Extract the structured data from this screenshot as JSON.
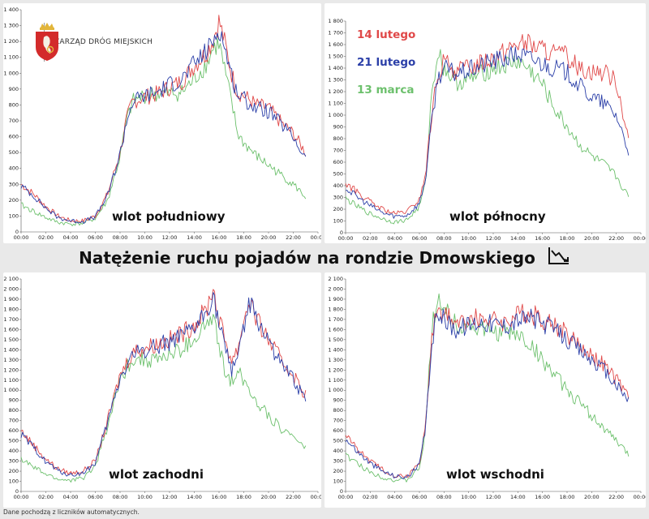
{
  "main_title": "Natężenie ruchu pojadów na rondzie Dmowskiego",
  "trend_icon": "downtrend-chart-icon",
  "source_note": "Dane pochodzą z liczników automatycznych.",
  "logo": {
    "text": "ZARZĄD DRÓG MIEJSKICH",
    "icon": "warsaw-coat-of-arms-icon",
    "shield_color": "#d32b2b",
    "crown_color": "#e2b53a"
  },
  "legend": [
    {
      "label": "14 lutego",
      "color": "#e04848"
    },
    {
      "label": "21 lutego",
      "color": "#2b3fa8"
    },
    {
      "label": "13 marca",
      "color": "#6cc06c"
    }
  ],
  "chart_data": [
    {
      "type": "line",
      "title": "wlot południowy",
      "x_ticks": [
        "00:00",
        "02:00",
        "04:00",
        "06:00",
        "08:00",
        "10:00",
        "12:00",
        "14:00",
        "16:00",
        "18:00",
        "20:00",
        "22:00",
        "00:00"
      ],
      "y_ticks": [
        "0",
        "100",
        "200",
        "300",
        "400",
        "500",
        "600",
        "700",
        "800",
        "900",
        "1 000",
        "1 100",
        "1 200",
        "1 300",
        "1 400"
      ],
      "ylim": [
        0,
        1400
      ],
      "series": [
        {
          "name": "14 lutego",
          "color": "#e04848",
          "x": [
            0,
            1,
            2,
            3,
            4,
            5,
            6,
            7,
            8,
            8.5,
            9,
            10,
            11,
            12,
            13,
            14,
            15,
            15.5,
            16,
            16.5,
            17,
            17.5,
            18,
            19,
            20,
            21,
            22,
            23
          ],
          "y": [
            300,
            240,
            160,
            100,
            70,
            70,
            100,
            240,
            500,
            700,
            820,
            850,
            870,
            910,
            950,
            1050,
            1130,
            1210,
            1330,
            1180,
            1000,
            880,
            860,
            800,
            780,
            690,
            620,
            500
          ]
        },
        {
          "name": "21 lutego",
          "color": "#2b3fa8",
          "x": [
            0,
            1,
            2,
            3,
            4,
            5,
            6,
            7,
            8,
            8.5,
            9,
            10,
            11,
            12,
            13,
            14,
            15,
            15.5,
            16,
            16.5,
            17,
            17.5,
            18,
            19,
            20,
            21,
            22,
            23
          ],
          "y": [
            290,
            230,
            150,
            90,
            70,
            65,
            95,
            230,
            490,
            690,
            820,
            860,
            880,
            930,
            960,
            1060,
            1140,
            1200,
            1290,
            1150,
            990,
            870,
            840,
            780,
            760,
            680,
            600,
            460
          ]
        },
        {
          "name": "13 marca",
          "color": "#6cc06c",
          "x": [
            0,
            1,
            2,
            3,
            4,
            5,
            6,
            7,
            8,
            8.5,
            9,
            10,
            11,
            12,
            13,
            14,
            15,
            15.5,
            16,
            16.5,
            17,
            17.5,
            18,
            19,
            20,
            21,
            22,
            23
          ],
          "y": [
            170,
            130,
            90,
            60,
            50,
            55,
            85,
            200,
            470,
            690,
            820,
            860,
            870,
            870,
            880,
            960,
            1060,
            1150,
            1190,
            1000,
            820,
            620,
            560,
            480,
            420,
            360,
            300,
            220
          ]
        }
      ]
    },
    {
      "type": "line",
      "title": "wlot północny",
      "x_ticks": [
        "00:00",
        "02:00",
        "04:00",
        "06:00",
        "08:00",
        "10:00",
        "12:00",
        "14:00",
        "16:00",
        "18:00",
        "20:00",
        "22:00",
        "00:00"
      ],
      "y_ticks": [
        "0",
        "100",
        "200",
        "300",
        "400",
        "500",
        "600",
        "700",
        "800",
        "900",
        "1 000",
        "1 100",
        "1 200",
        "1 300",
        "1 400",
        "1 500",
        "1 600",
        "1 700",
        "1 800"
      ],
      "ylim": [
        0,
        1800
      ],
      "series": [
        {
          "name": "14 lutego",
          "color": "#e04848",
          "x": [
            0,
            1,
            2,
            3,
            4,
            5,
            6,
            6.5,
            7,
            7.5,
            8,
            9,
            10,
            11,
            12,
            13,
            14,
            15,
            16,
            17,
            18,
            19,
            20,
            21,
            22,
            23
          ],
          "y": [
            420,
            340,
            260,
            200,
            160,
            180,
            280,
            500,
            1000,
            1350,
            1450,
            1380,
            1400,
            1450,
            1500,
            1550,
            1620,
            1600,
            1560,
            1520,
            1500,
            1400,
            1380,
            1360,
            1300,
            800
          ]
        },
        {
          "name": "21 lutego",
          "color": "#2b3fa8",
          "x": [
            0,
            1,
            2,
            3,
            4,
            5,
            6,
            6.5,
            7,
            7.5,
            8,
            9,
            10,
            11,
            12,
            13,
            14,
            15,
            16,
            17,
            18,
            19,
            20,
            21,
            22,
            23
          ],
          "y": [
            380,
            300,
            230,
            170,
            140,
            150,
            250,
            460,
            950,
            1320,
            1400,
            1350,
            1380,
            1420,
            1460,
            1480,
            1520,
            1480,
            1440,
            1400,
            1360,
            1250,
            1150,
            1100,
            1000,
            700
          ]
        },
        {
          "name": "13 marca",
          "color": "#6cc06c",
          "x": [
            0,
            1,
            2,
            3,
            4,
            5,
            6,
            6.5,
            7,
            7.5,
            8,
            9,
            10,
            11,
            12,
            13,
            14,
            15,
            16,
            17,
            18,
            19,
            20,
            21,
            22,
            23
          ],
          "y": [
            290,
            220,
            160,
            120,
            90,
            110,
            220,
            420,
            1200,
            1550,
            1400,
            1280,
            1300,
            1350,
            1400,
            1420,
            1460,
            1380,
            1260,
            1050,
            900,
            750,
            650,
            580,
            480,
            300
          ]
        }
      ]
    },
    {
      "type": "line",
      "title": "wlot zachodni",
      "x_ticks": [
        "00:00",
        "02:00",
        "04:00",
        "06:00",
        "08:00",
        "10:00",
        "12:00",
        "14:00",
        "16:00",
        "18:00",
        "20:00",
        "22:00",
        "00:00"
      ],
      "y_ticks": [
        "0",
        "100",
        "200",
        "300",
        "400",
        "500",
        "600",
        "700",
        "800",
        "900",
        "1 000",
        "1 100",
        "1 200",
        "1 300",
        "1 400",
        "1 500",
        "1 600",
        "1 700",
        "1 800",
        "1 900",
        "2 000",
        "2 100"
      ],
      "ylim": [
        0,
        2100
      ],
      "series": [
        {
          "name": "14 lutego",
          "color": "#e04848",
          "x": [
            0,
            1,
            2,
            3,
            4,
            5,
            6,
            7,
            8,
            9,
            10,
            11,
            12,
            13,
            14,
            15,
            15.5,
            16,
            16.5,
            17,
            17.5,
            18,
            18.5,
            19,
            20,
            21,
            22,
            23
          ],
          "y": [
            600,
            460,
            320,
            220,
            180,
            200,
            300,
            700,
            1150,
            1380,
            1420,
            1460,
            1500,
            1560,
            1650,
            1800,
            2020,
            1700,
            1500,
            1300,
            1400,
            1700,
            1900,
            1700,
            1500,
            1300,
            1150,
            950
          ]
        },
        {
          "name": "21 lutego",
          "color": "#2b3fa8",
          "x": [
            0,
            1,
            2,
            3,
            4,
            5,
            6,
            7,
            8,
            9,
            10,
            11,
            12,
            13,
            14,
            15,
            15.5,
            16,
            16.5,
            17,
            17.5,
            18,
            18.5,
            19,
            20,
            21,
            22,
            23
          ],
          "y": [
            560,
            430,
            300,
            200,
            160,
            180,
            280,
            680,
            1120,
            1350,
            1400,
            1440,
            1480,
            1520,
            1600,
            1780,
            1950,
            1650,
            1400,
            1200,
            1350,
            1650,
            1850,
            1700,
            1500,
            1250,
            1100,
            900
          ]
        },
        {
          "name": "13 marca",
          "color": "#6cc06c",
          "x": [
            0,
            1,
            2,
            3,
            4,
            5,
            6,
            7,
            8,
            9,
            10,
            11,
            12,
            13,
            14,
            15,
            15.5,
            16,
            16.5,
            17,
            17.5,
            18,
            18.5,
            19,
            20,
            21,
            22,
            23
          ],
          "y": [
            320,
            240,
            170,
            120,
            110,
            130,
            250,
            650,
            1100,
            1320,
            1300,
            1300,
            1350,
            1400,
            1500,
            1650,
            1700,
            1450,
            1150,
            1100,
            1200,
            1100,
            1000,
            900,
            750,
            620,
            550,
            420
          ]
        }
      ]
    },
    {
      "type": "line",
      "title": "wlot wschodni",
      "x_ticks": [
        "00:00",
        "02:00",
        "04:00",
        "06:00",
        "08:00",
        "10:00",
        "12:00",
        "14:00",
        "16:00",
        "18:00",
        "20:00",
        "22:00",
        "00:00"
      ],
      "y_ticks": [
        "0",
        "100",
        "200",
        "300",
        "400",
        "500",
        "600",
        "700",
        "800",
        "900",
        "1 000",
        "1 100",
        "1 200",
        "1 300",
        "1 400",
        "1 500",
        "1 600",
        "1 700",
        "1 800",
        "1 900",
        "2 000",
        "2 100"
      ],
      "ylim": [
        0,
        2100
      ],
      "series": [
        {
          "name": "14 lutego",
          "color": "#e04848",
          "x": [
            0,
            1,
            2,
            3,
            4,
            5,
            6,
            6.5,
            7,
            7.5,
            8,
            9,
            10,
            11,
            12,
            13,
            14,
            15,
            16,
            17,
            18,
            19,
            20,
            21,
            22,
            23
          ],
          "y": [
            560,
            420,
            300,
            220,
            160,
            150,
            280,
            650,
            1500,
            1850,
            1750,
            1650,
            1700,
            1720,
            1700,
            1680,
            1750,
            1760,
            1700,
            1650,
            1550,
            1450,
            1350,
            1250,
            1100,
            950
          ]
        },
        {
          "name": "21 lutego",
          "color": "#2b3fa8",
          "x": [
            0,
            1,
            2,
            3,
            4,
            5,
            6,
            6.5,
            7,
            7.5,
            8,
            9,
            10,
            11,
            12,
            13,
            14,
            15,
            16,
            17,
            18,
            19,
            20,
            21,
            22,
            23
          ],
          "y": [
            520,
            390,
            280,
            200,
            150,
            140,
            260,
            620,
            1450,
            1800,
            1700,
            1600,
            1650,
            1680,
            1660,
            1640,
            1700,
            1720,
            1660,
            1600,
            1500,
            1400,
            1300,
            1200,
            1050,
            900
          ]
        },
        {
          "name": "13 marca",
          "color": "#6cc06c",
          "x": [
            0,
            1,
            2,
            3,
            4,
            5,
            6,
            6.5,
            7,
            7.5,
            8,
            9,
            10,
            11,
            12,
            13,
            14,
            15,
            16,
            17,
            18,
            19,
            20,
            21,
            22,
            23
          ],
          "y": [
            360,
            270,
            190,
            140,
            110,
            110,
            230,
            600,
            1600,
            1950,
            1800,
            1650,
            1650,
            1600,
            1580,
            1560,
            1550,
            1450,
            1300,
            1150,
            1000,
            880,
            750,
            620,
            500,
            360
          ]
        }
      ]
    }
  ]
}
